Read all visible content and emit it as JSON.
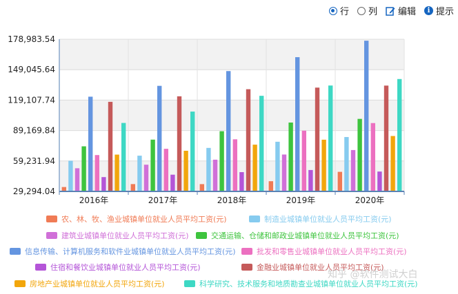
{
  "toolbar": {
    "row_label": "行",
    "col_label": "列",
    "edit_label": "编辑",
    "hint_label": "提示"
  },
  "chart_data": {
    "type": "bar",
    "categories": [
      "2016年",
      "2017年",
      "2018年",
      "2019年",
      "2020年"
    ],
    "ylim": [
      29294.04,
      178983.54
    ],
    "yticks": [
      "29,294.04",
      "59,231.94",
      "89,169.84",
      "119,107.74",
      "149,045.64",
      "178,983.54"
    ],
    "ytick_values": [
      29294.04,
      59231.94,
      89169.84,
      119107.74,
      149045.64,
      178983.54
    ],
    "grid": true,
    "legend_position": "bottom",
    "series": [
      {
        "name": "农、林、牧、渔业城镇单位就业人员平均工资(元)",
        "color": "#f07b55",
        "values": [
          33612,
          36504,
          36466,
          39340,
          48540
        ]
      },
      {
        "name": "制造业城镇单位就业人员平均工资(元)",
        "color": "#86cbef",
        "values": [
          59470,
          64452,
          72088,
          78147,
          82783
        ]
      },
      {
        "name": "建筑业城镇单位就业人员平均工资(元)",
        "color": "#d070d8",
        "values": [
          52082,
          55568,
          60501,
          65580,
          69986
        ]
      },
      {
        "name": "交通运输、仓储和邮政业城镇单位就业人员平均工资(元)",
        "color": "#3ec43e",
        "values": [
          73650,
          80225,
          88508,
          97050,
          100642
        ]
      },
      {
        "name": "信息传输、计算机服务和软件业城镇单位就业人员平均工资(元)",
        "color": "#6495e0",
        "values": [
          122478,
          133150,
          147678,
          161352,
          177544
        ]
      },
      {
        "name": "批发和零售业城镇单位就业人员平均工资(元)",
        "color": "#ec70c0",
        "values": [
          65061,
          71201,
          80551,
          89047,
          96521
        ]
      },
      {
        "name": "住宿和餐饮业城镇单位就业人员平均工资(元)",
        "color": "#b455d8",
        "values": [
          43382,
          45751,
          48260,
          50346,
          48833
        ]
      },
      {
        "name": "金融业城镇单位就业人员平均工资(元)",
        "color": "#c55a5a",
        "values": [
          117418,
          122851,
          129837,
          131405,
          133390
        ]
      },
      {
        "name": "房地产业城镇单位就业人员平均工资(元)",
        "color": "#f2a60c",
        "values": [
          65497,
          69277,
          75281,
          80157,
          83807
        ]
      },
      {
        "name": "科学研究、技术服务和地质勘查业城镇单位就业人员平均工资(元)",
        "color": "#3ed8c4",
        "values": [
          96638,
          107815,
          123343,
          133459,
          139851
        ]
      }
    ]
  },
  "watermark": "知乎 @软件测试大白"
}
